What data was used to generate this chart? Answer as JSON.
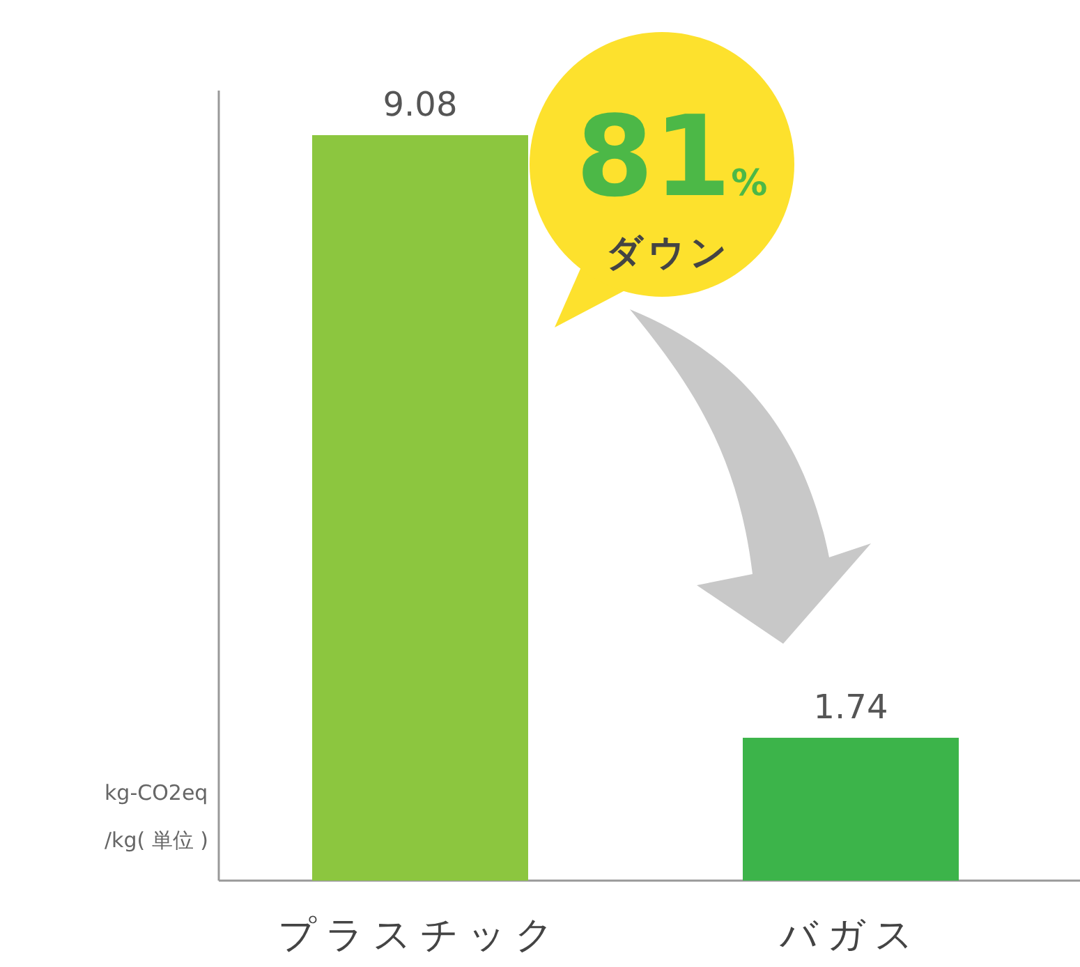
{
  "chart_data": {
    "type": "bar",
    "categories": [
      "プラスチック",
      "バガス"
    ],
    "values": [
      9.08,
      1.74
    ],
    "colors": [
      "#8cc63f",
      "#3cb44a"
    ],
    "data_labels": true,
    "ylabel": "kg-CO2eq /kg( 単位 )",
    "annotations": [
      "81%",
      "ダウン"
    ]
  }
}
